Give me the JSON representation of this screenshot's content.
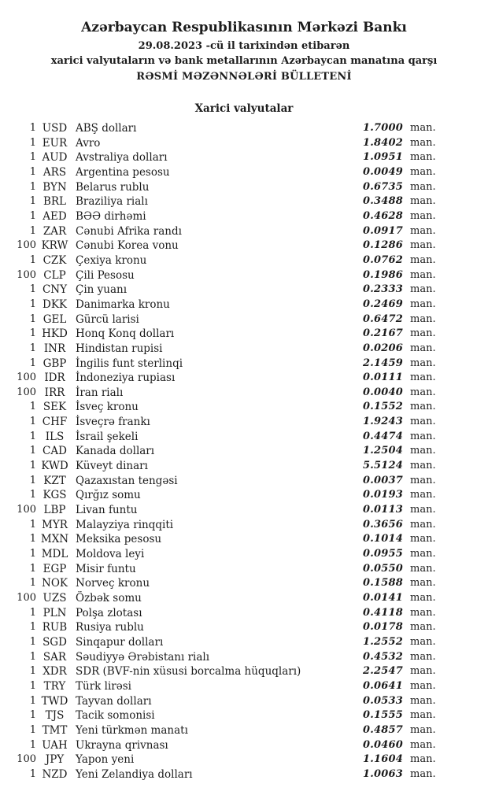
{
  "header": {
    "bank_title": "Azərbaycan Respublikasının Mərkəzi Bankı",
    "date_line": "29.08.2023 -cü il tarixindən etibarən",
    "subtitle_line": "xarici valyutaların və bank metallarının Azərbaycan manatına qarşı",
    "bulletin_title": "RƏSMİ MƏZƏNNƏLƏRİ BÜLLETENİ"
  },
  "section": {
    "title": "Xarici valyutalar"
  },
  "unit_label": "man.",
  "text_color": "#1c1c1c",
  "rates": [
    {
      "qty": "1",
      "code": "USD",
      "name": "ABŞ dolları",
      "rate": "1.7000"
    },
    {
      "qty": "1",
      "code": "EUR",
      "name": "Avro",
      "rate": "1.8402"
    },
    {
      "qty": "1",
      "code": "AUD",
      "name": "Avstraliya dolları",
      "rate": "1.0951"
    },
    {
      "qty": "1",
      "code": "ARS",
      "name": "Argentina pesosu",
      "rate": "0.0049"
    },
    {
      "qty": "1",
      "code": "BYN",
      "name": "Belarus rublu",
      "rate": "0.6735"
    },
    {
      "qty": "1",
      "code": "BRL",
      "name": "Braziliya rialı",
      "rate": "0.3488"
    },
    {
      "qty": "1",
      "code": "AED",
      "name": "BƏƏ dirhəmi",
      "rate": "0.4628"
    },
    {
      "qty": "1",
      "code": "ZAR",
      "name": "Cənubi Afrika randı",
      "rate": "0.0917"
    },
    {
      "qty": "100",
      "code": "KRW",
      "name": "Cənubi Korea vonu",
      "rate": "0.1286"
    },
    {
      "qty": "1",
      "code": "CZK",
      "name": "Çexiya kronu",
      "rate": "0.0762"
    },
    {
      "qty": "100",
      "code": "CLP",
      "name": "Çili Pesosu",
      "rate": "0.1986"
    },
    {
      "qty": "1",
      "code": "CNY",
      "name": "Çin yuanı",
      "rate": "0.2333"
    },
    {
      "qty": "1",
      "code": "DKK",
      "name": "Danimarka kronu",
      "rate": "0.2469"
    },
    {
      "qty": "1",
      "code": "GEL",
      "name": "Gürcü larisi",
      "rate": "0.6472"
    },
    {
      "qty": "1",
      "code": "HKD",
      "name": "Honq Konq dolları",
      "rate": "0.2167"
    },
    {
      "qty": "1",
      "code": "INR",
      "name": "Hindistan rupisi",
      "rate": "0.0206"
    },
    {
      "qty": "1",
      "code": "GBP",
      "name": "İngilis funt sterlinqi",
      "rate": "2.1459"
    },
    {
      "qty": "100",
      "code": "IDR",
      "name": "İndoneziya rupiası",
      "rate": "0.0111"
    },
    {
      "qty": "100",
      "code": "IRR",
      "name": "İran rialı",
      "rate": "0.0040"
    },
    {
      "qty": "1",
      "code": "SEK",
      "name": "İsveç kronu",
      "rate": "0.1552"
    },
    {
      "qty": "1",
      "code": "CHF",
      "name": "İsveçrə frankı",
      "rate": "1.9243"
    },
    {
      "qty": "1",
      "code": "ILS",
      "name": "İsrail şekeli",
      "rate": "0.4474"
    },
    {
      "qty": "1",
      "code": "CAD",
      "name": "Kanada dolları",
      "rate": "1.2504"
    },
    {
      "qty": "1",
      "code": "KWD",
      "name": "Küveyt dinarı",
      "rate": "5.5124"
    },
    {
      "qty": "1",
      "code": "KZT",
      "name": "Qazaxıstan tengəsi",
      "rate": "0.0037"
    },
    {
      "qty": "1",
      "code": "KGS",
      "name": "Qırğız somu",
      "rate": "0.0193"
    },
    {
      "qty": "100",
      "code": "LBP",
      "name": "Livan funtu",
      "rate": "0.0113"
    },
    {
      "qty": "1",
      "code": "MYR",
      "name": "Malayziya rinqqiti",
      "rate": "0.3656"
    },
    {
      "qty": "1",
      "code": "MXN",
      "name": "Meksika pesosu",
      "rate": "0.1014"
    },
    {
      "qty": "1",
      "code": "MDL",
      "name": "Moldova leyi",
      "rate": "0.0955"
    },
    {
      "qty": "1",
      "code": "EGP",
      "name": "Misir funtu",
      "rate": "0.0550"
    },
    {
      "qty": "1",
      "code": "NOK",
      "name": "Norveç kronu",
      "rate": "0.1588"
    },
    {
      "qty": "100",
      "code": "UZS",
      "name": "Özbək somu",
      "rate": "0.0141"
    },
    {
      "qty": "1",
      "code": "PLN",
      "name": "Polşa zlotası",
      "rate": "0.4118"
    },
    {
      "qty": "1",
      "code": "RUB",
      "name": "Rusiya rublu",
      "rate": "0.0178"
    },
    {
      "qty": "1",
      "code": "SGD",
      "name": "Sinqapur dolları",
      "rate": "1.2552"
    },
    {
      "qty": "1",
      "code": "SAR",
      "name": "Səudiyyə Ərəbistanı rialı",
      "rate": "0.4532"
    },
    {
      "qty": "1",
      "code": "XDR",
      "name": "SDR (BVF-nin xüsusi borcalma hüquqları)",
      "rate": "2.2547"
    },
    {
      "qty": "1",
      "code": "TRY",
      "name": "Türk lirəsi",
      "rate": "0.0641"
    },
    {
      "qty": "1",
      "code": "TWD",
      "name": "Tayvan dolları",
      "rate": "0.0533"
    },
    {
      "qty": "1",
      "code": "TJS",
      "name": "Tacik somonisi",
      "rate": "0.1555"
    },
    {
      "qty": "1",
      "code": "TMT",
      "name": "Yeni türkmən manatı",
      "rate": "0.4857"
    },
    {
      "qty": "1",
      "code": "UAH",
      "name": "Ukrayna qrivnası",
      "rate": "0.0460"
    },
    {
      "qty": "100",
      "code": "JPY",
      "name": "Yapon yeni",
      "rate": "1.1604"
    },
    {
      "qty": "1",
      "code": "NZD",
      "name": "Yeni Zelandiya dolları",
      "rate": "1.0063"
    }
  ]
}
